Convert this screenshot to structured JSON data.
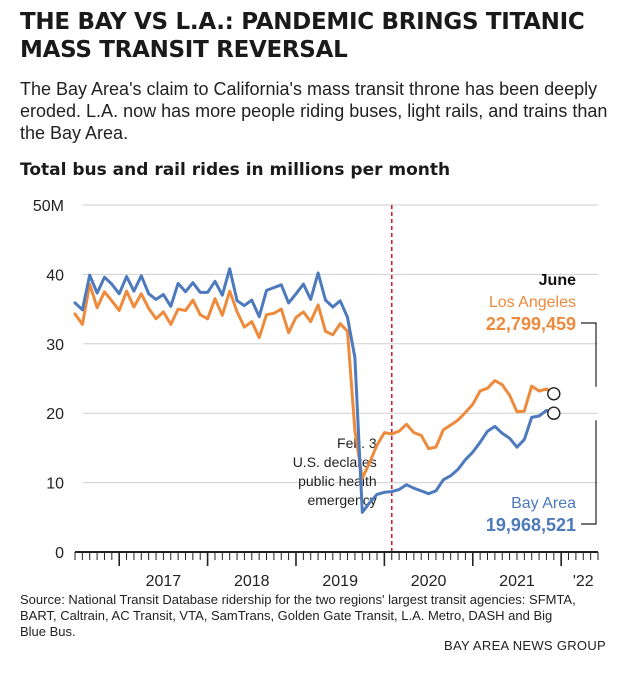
{
  "headline": "THE BAY VS L.A.: PANDEMIC BRINGS TITANIC MASS TRANSIT REVERSAL",
  "dek": "The Bay Area's claim to California's mass transit throne has been deeply eroded. L.A. now has more people riding buses, light rails, and trains than the Bay Area.",
  "source": "Source: National Transit Database ridership for the two regions' largest transit agencies: SFMTA, BART, Caltrain, AC Transit, VTA, SamTrans, Golden Gate Transit, L.A. Metro, DASH and Big Blue Bus.",
  "credit": "BAY AREA NEWS GROUP",
  "colors": {
    "la": "#ee8a3c",
    "bay": "#4d79bd",
    "marker": "#c4213f",
    "grid": "#cfcfcf",
    "axis": "#222222"
  },
  "chart_data": {
    "type": "line",
    "title": "Total bus and rail rides in millions per month",
    "y_unit": "M",
    "ylim": [
      0,
      50
    ],
    "y_ticks": [
      "0",
      "10",
      "20",
      "30",
      "40",
      "50M"
    ],
    "y_tick_values": [
      0,
      10,
      20,
      30,
      40,
      50
    ],
    "grid": true,
    "x_start": "2016-07",
    "x_end": "2022-06",
    "x_tick_labels": [
      {
        "label": "2017",
        "center": "2017-07"
      },
      {
        "label": "2018",
        "center": "2018-07"
      },
      {
        "label": "2019",
        "center": "2019-07"
      },
      {
        "label": "2020",
        "center": "2020-07"
      },
      {
        "label": "2021",
        "center": "2021-07"
      },
      {
        "label": "'22",
        "center": "2022-04"
      }
    ],
    "series": [
      {
        "key": "la",
        "name": "Los Angeles",
        "end_value": "22,799,459",
        "values": [
          34.3,
          32.8,
          38.6,
          35.2,
          37.5,
          36.2,
          34.8,
          37.6,
          35.3,
          37.2,
          35.1,
          33.6,
          34.6,
          32.8,
          35.0,
          34.8,
          36.3,
          34.2,
          33.6,
          36.5,
          34.1,
          37.6,
          34.6,
          32.4,
          33.2,
          30.9,
          34.2,
          34.4,
          35.0,
          31.6,
          33.8,
          34.6,
          33.2,
          35.6,
          31.8,
          31.3,
          32.9,
          31.8,
          17.5,
          10.6,
          12.9,
          15.4,
          17.2,
          17.0,
          17.4,
          18.4,
          17.2,
          16.8,
          14.9,
          15.1,
          17.6,
          18.3,
          19.0,
          20.1,
          21.3,
          23.2,
          23.6,
          24.7,
          24.1,
          22.6,
          20.2,
          20.3,
          23.9,
          23.2,
          23.5,
          22.8
        ]
      },
      {
        "key": "bay",
        "name": "Bay Area",
        "end_value": "19,968,521",
        "values": [
          35.9,
          34.9,
          39.9,
          37.3,
          39.6,
          38.6,
          37.2,
          39.7,
          37.6,
          39.8,
          37.2,
          36.4,
          37.1,
          35.4,
          38.7,
          37.5,
          38.8,
          37.4,
          37.4,
          39.0,
          37.0,
          40.8,
          36.2,
          35.5,
          36.3,
          33.9,
          37.7,
          38.1,
          38.5,
          35.9,
          37.2,
          38.6,
          36.4,
          40.2,
          36.3,
          35.3,
          36.2,
          33.8,
          28.0,
          5.7,
          7.1,
          8.3,
          8.6,
          8.7,
          9.0,
          9.7,
          9.2,
          8.8,
          8.4,
          8.8,
          10.4,
          11.0,
          11.9,
          13.3,
          14.4,
          15.8,
          17.4,
          18.1,
          17.1,
          16.4,
          15.1,
          16.2,
          19.4,
          19.6,
          20.4,
          20.0
        ]
      }
    ],
    "annotations": {
      "event_date": "2020-02",
      "event_lines": [
        "Feb. 3",
        "U.S. declares",
        "public health",
        "emergency"
      ],
      "month_label": "June"
    }
  }
}
